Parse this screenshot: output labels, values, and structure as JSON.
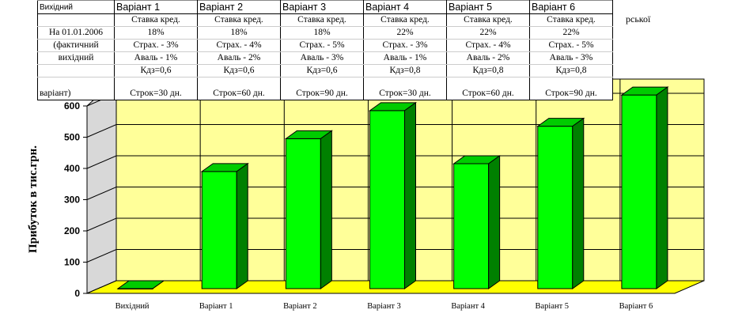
{
  "title_fragment": "рської",
  "table": {
    "headers": [
      "Вихідний",
      "Варіант 1",
      "Варіант 2",
      "Варіант 3",
      "Варіант 4",
      "Варіант 5",
      "Варіант 6"
    ],
    "rows": [
      [
        "",
        "Ставка кред.",
        "Ставка кред.",
        "Ставка кред.",
        "Ставка кред.",
        "Ставка кред.",
        "Ставка кред."
      ],
      [
        "На 01.01.2006",
        "18%",
        "18%",
        "18%",
        "22%",
        "22%",
        "22%"
      ],
      [
        "(фактичний",
        "Страх. - 3%",
        "Страх. - 4%",
        "Страх. - 5%",
        "Страх. - 3%",
        "Страх. - 4%",
        "Страх. - 5%"
      ],
      [
        "вихідний",
        "Аваль - 1%",
        "Аваль - 2%",
        "Аваль - 3%",
        "Аваль - 1%",
        "Аваль - 2%",
        "Аваль - 3%"
      ],
      [
        "",
        "Кдз=0,6",
        "Кдз=0,6",
        "Кдз=0,6",
        "Кдз=0,8",
        "Кдз=0,8",
        "Кдз=0,8"
      ],
      [
        "варіант)",
        "Строк=30 дн.",
        "Строк=60 дн.",
        "Строк=90 дн.",
        "Строк=30 дн.",
        "Строк=60 дн.",
        "Строк=90 дн."
      ]
    ]
  },
  "chart_data": {
    "type": "bar",
    "categories": [
      "Вихідний",
      "Варіант 1",
      "Варіант 2",
      "Варіант 3",
      "Варіант 4",
      "Варіант 5",
      "Варіант 6"
    ],
    "values": [
      0,
      375,
      480,
      570,
      400,
      520,
      620
    ],
    "ylabel": "Прибуток в тис.грн.",
    "xlabel": "",
    "ylim": [
      0,
      600
    ],
    "yticks": [
      0,
      100,
      200,
      300,
      400,
      500,
      600
    ],
    "grid": true,
    "colors": {
      "bar": "#00ff00",
      "bar_top": "#00cc00",
      "bar_side": "#008000",
      "wall": "#ffff99",
      "floor": "#ffff00"
    }
  }
}
